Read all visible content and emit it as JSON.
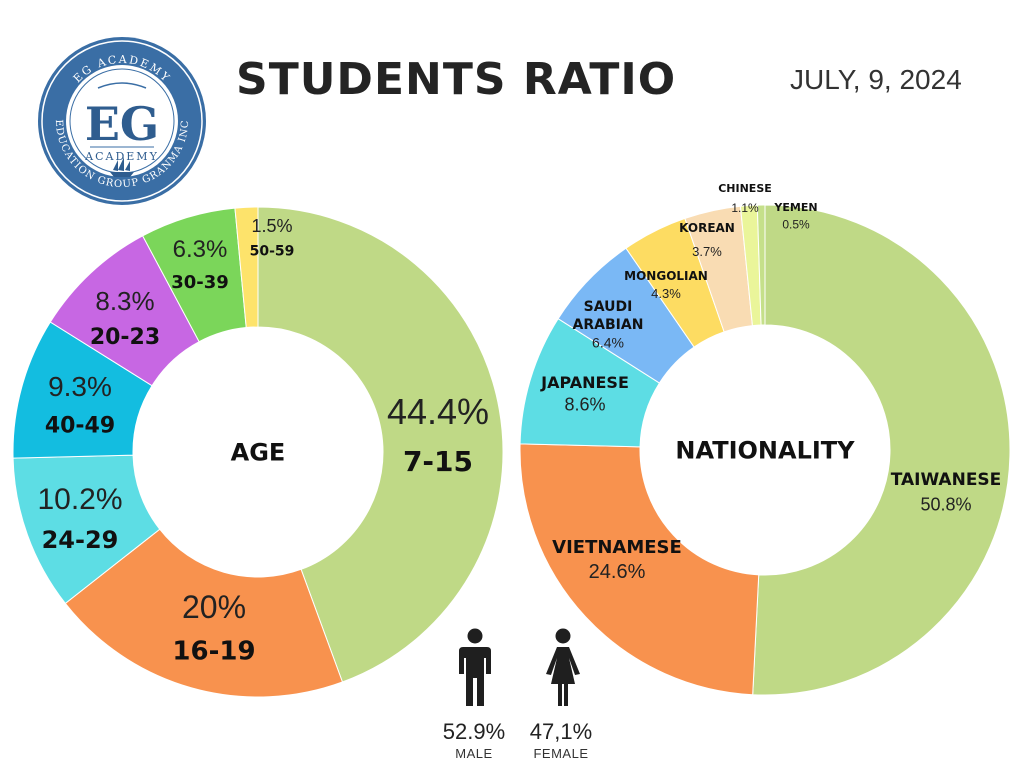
{
  "header": {
    "title": "STUDENTS RATIO",
    "date": "JULY, 9, 2024"
  },
  "logo": {
    "arc_top": "EG ACADEMY",
    "monogram": "EG",
    "subtitle": "ACADEMY",
    "arc_bottom": "EDUCATION GROUP GRANMA INC",
    "colors": {
      "ring": "#3a6ea5",
      "inner": "#ffffff",
      "text": "#2f5d8f"
    }
  },
  "chart_data": [
    {
      "type": "pie",
      "variant": "donut",
      "center_label": "AGE",
      "slices": [
        {
          "label": "7-15",
          "percent_label": "44.4%",
          "value": 44.4,
          "color": "#bfd986"
        },
        {
          "label": "16-19",
          "percent_label": "20%",
          "value": 20.0,
          "color": "#f8924e"
        },
        {
          "label": "24-29",
          "percent_label": "10.2%",
          "value": 10.2,
          "color": "#5ddde4"
        },
        {
          "label": "40-49",
          "percent_label": "9.3%",
          "value": 9.3,
          "color": "#13bde0"
        },
        {
          "label": "20-23",
          "percent_label": "8.3%",
          "value": 8.3,
          "color": "#c767e3"
        },
        {
          "label": "30-39",
          "percent_label": "6.3%",
          "value": 6.3,
          "color": "#7bd65a"
        },
        {
          "label": "50-59",
          "percent_label": "1.5%",
          "value": 1.5,
          "color": "#fde36b"
        }
      ]
    },
    {
      "type": "pie",
      "variant": "donut",
      "center_label": "NATIONALITY",
      "slices": [
        {
          "label": "TAIWANESE",
          "percent_label": "50.8%",
          "value": 50.8,
          "color": "#bfd986"
        },
        {
          "label": "VIETNAMESE",
          "percent_label": "24.6%",
          "value": 24.6,
          "color": "#f8924e"
        },
        {
          "label": "JAPANESE",
          "percent_label": "8.6%",
          "value": 8.6,
          "color": "#5ddde4"
        },
        {
          "label": "SAUDI ARABIAN",
          "label_lines": [
            "SAUDI",
            "ARABIAN"
          ],
          "percent_label": "6.4%",
          "value": 6.4,
          "color": "#7ab8f5"
        },
        {
          "label": "MONGOLIAN",
          "percent_label": "4.3%",
          "value": 4.3,
          "color": "#fddc62"
        },
        {
          "label": "KOREAN",
          "percent_label": "3.7%",
          "value": 3.7,
          "color": "#f9dcb3"
        },
        {
          "label": "CHINESE",
          "percent_label": "1.1%",
          "value": 1.1,
          "color": "#eaf59a"
        },
        {
          "label": "YEMEN",
          "percent_label": "0.5%",
          "value": 0.5,
          "color": "#c5e08a"
        }
      ]
    }
  ],
  "gender": {
    "male": {
      "percent": "52.9%",
      "label": "MALE",
      "icon": "male-person-icon"
    },
    "female": {
      "percent": "47,1%",
      "label": "FEMALE",
      "icon": "female-person-icon"
    },
    "icon_color": "#1f1f1f"
  }
}
